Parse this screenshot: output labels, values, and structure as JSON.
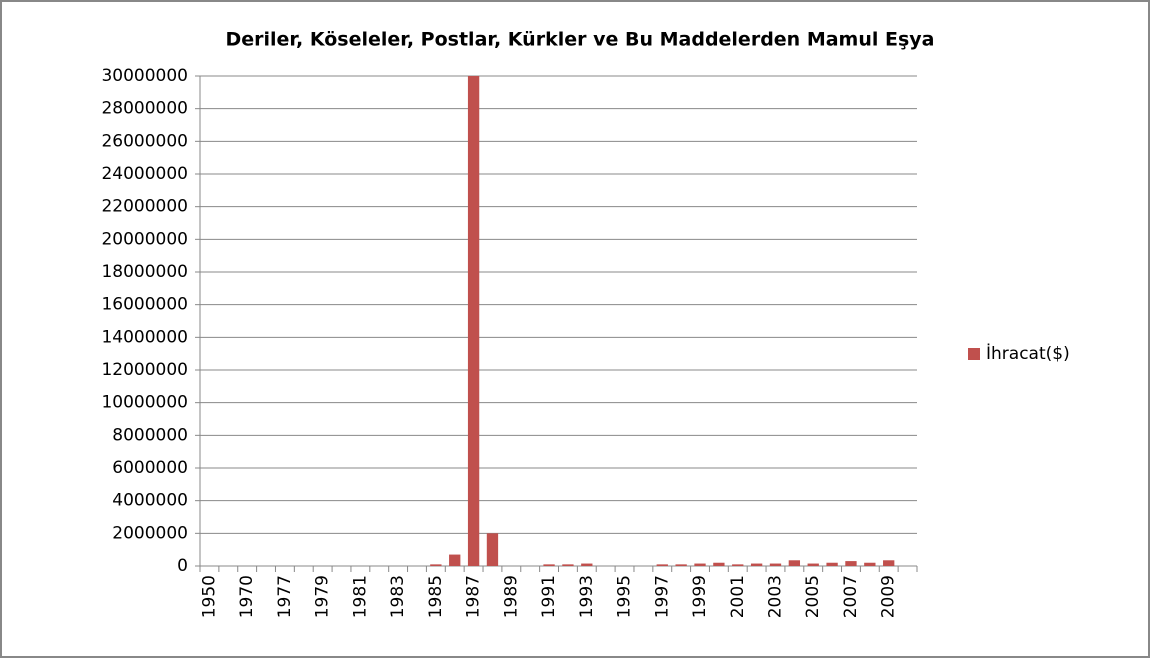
{
  "chart_data": {
    "type": "bar",
    "title": "Deriler, Köseleler, Postlar, Kürkler ve Bu Maddelerden Mamul Eşya",
    "categories": [
      "1950",
      null,
      "1970",
      null,
      "1977",
      null,
      "1979",
      null,
      "1981",
      null,
      "1983",
      null,
      "1985",
      null,
      "1987",
      null,
      "1989",
      null,
      "1991",
      null,
      "1993",
      null,
      "1995",
      null,
      "1997",
      null,
      "1999",
      null,
      "2001",
      null,
      "2003",
      null,
      "2005",
      null,
      "2007",
      null,
      "2009",
      null
    ],
    "series": [
      {
        "name": "İhracat($)",
        "color": "#c0504d",
        "values": [
          0,
          0,
          0,
          0,
          0,
          0,
          0,
          0,
          0,
          0,
          0,
          0,
          100000,
          700000,
          30000000,
          2000000,
          0,
          0,
          100000,
          100000,
          150000,
          0,
          0,
          0,
          100000,
          100000,
          150000,
          200000,
          100000,
          150000,
          150000,
          350000,
          150000,
          200000,
          300000,
          200000,
          350000,
          0
        ]
      }
    ],
    "ylim": [
      0,
      30000000
    ],
    "yticks": [
      0,
      2000000,
      4000000,
      6000000,
      8000000,
      10000000,
      12000000,
      14000000,
      16000000,
      18000000,
      20000000,
      22000000,
      24000000,
      26000000,
      28000000,
      30000000
    ],
    "grid": true,
    "legend": "right"
  }
}
